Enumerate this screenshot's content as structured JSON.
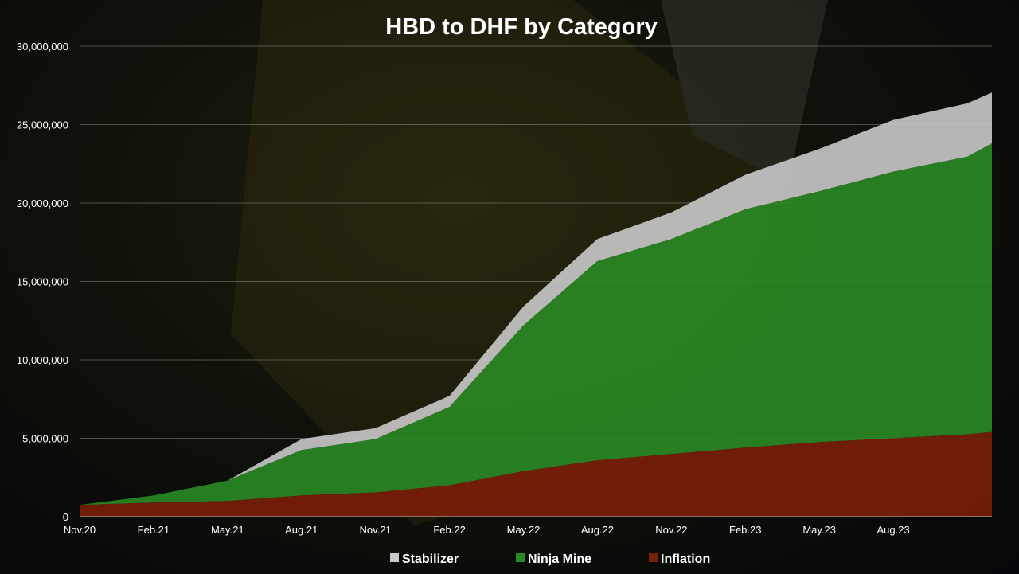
{
  "chart_data": {
    "type": "area",
    "stacked": true,
    "title": "HBD to DHF by Category",
    "xlabel": "",
    "ylabel": "",
    "ylim": [
      0,
      30000000
    ],
    "yticks": [
      0,
      5000000,
      10000000,
      15000000,
      20000000,
      25000000,
      30000000
    ],
    "ytick_labels": [
      "0",
      "5,000,000",
      "10,000,000",
      "15,000,000",
      "20,000,000",
      "25,000,000",
      "30,000,000"
    ],
    "x_tick_labels": [
      "Nov.20",
      "Feb.21",
      "May.21",
      "Aug.21",
      "Nov.21",
      "Feb.22",
      "May.22",
      "Aug.22",
      "Nov.22",
      "Feb.23",
      "May.23",
      "Aug.23"
    ],
    "x_months": [
      0,
      3,
      6,
      9,
      12,
      15,
      18,
      21,
      24,
      27,
      30,
      33,
      36,
      37
    ],
    "x_range_months": [
      0,
      37
    ],
    "grid": "horizontal",
    "legend_position": "bottom",
    "series": [
      {
        "name": "Inflation",
        "color": "#7a1f08",
        "values": [
          750000,
          900000,
          1000000,
          1350000,
          1550000,
          2000000,
          2900000,
          3600000,
          4000000,
          4400000,
          4750000,
          5000000,
          5250000,
          5400000
        ]
      },
      {
        "name": "Ninja Mine",
        "color": "#2a8a25",
        "values": [
          0,
          450000,
          1300000,
          2900000,
          3400000,
          5000000,
          9300000,
          12700000,
          13700000,
          15200000,
          16000000,
          17000000,
          17700000,
          18400000
        ]
      },
      {
        "name": "Stabilizer",
        "color": "#c9c9c9",
        "values": [
          0,
          0,
          0,
          700000,
          700000,
          700000,
          1200000,
          1400000,
          1700000,
          2200000,
          2700000,
          3300000,
          3400000,
          3250000
        ]
      }
    ],
    "legend": [
      "Stabilizer",
      "Ninja Mine",
      "Inflation"
    ]
  }
}
